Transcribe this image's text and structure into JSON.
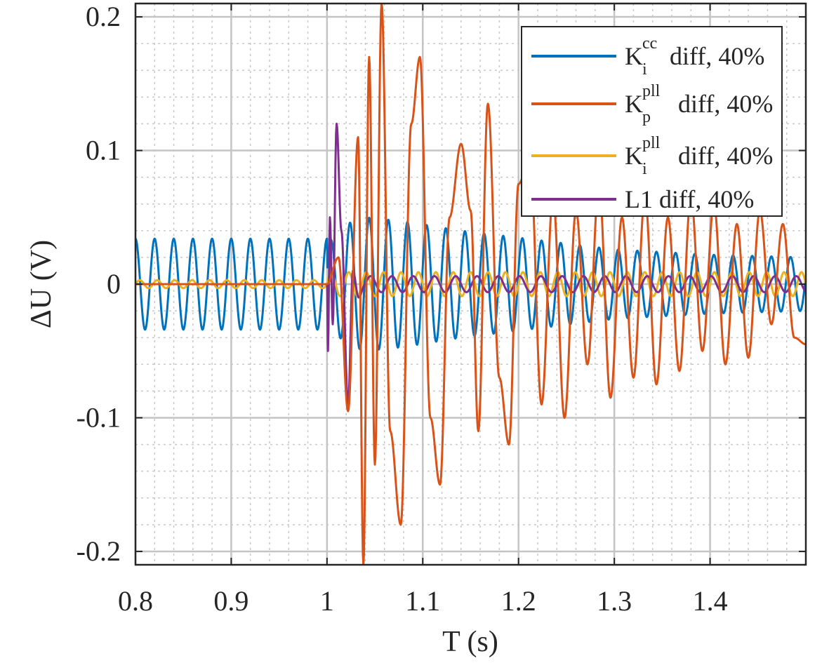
{
  "chart_data": {
    "type": "line",
    "xlabel": "T (s)",
    "ylabel": "ΔU (V)",
    "xlim": [
      0.8,
      1.5
    ],
    "ylim": [
      -0.21,
      0.21
    ],
    "xticks": [
      0.8,
      0.9,
      1.0,
      1.1,
      1.2,
      1.3,
      1.4
    ],
    "xtick_labels": [
      "0.8",
      "0.9",
      "1",
      "1.1",
      "1.2",
      "1.3",
      "1.4"
    ],
    "yticks": [
      -0.2,
      -0.1,
      0,
      0.1,
      0.2
    ],
    "ytick_labels": [
      "-0.2",
      "-0.1",
      "0",
      "0.1",
      "0.2"
    ],
    "grid": true,
    "minor_grid": true,
    "legend_position": "top-right",
    "series": [
      {
        "name": "K_i^cc diff, 40%",
        "legend": {
          "base": "K",
          "sub": "i",
          "sup": "cc",
          "rest": " diff, 40%"
        },
        "color": "#0072BD",
        "frequency_hz": 50,
        "before_amplitude": 0.034,
        "after_peaks": [
          [
            1.0,
            0.03
          ],
          [
            1.02,
            0.045
          ],
          [
            1.04,
            0.05
          ],
          [
            1.08,
            0.047
          ],
          [
            1.14,
            0.04
          ],
          [
            1.22,
            0.033
          ],
          [
            1.3,
            0.026
          ],
          [
            1.4,
            0.022
          ],
          [
            1.5,
            0.02
          ]
        ]
      },
      {
        "name": "K_p^pll diff, 40%",
        "legend": {
          "base": "K",
          "sub": "p",
          "sup": "pll",
          "rest": " diff, 40%"
        },
        "color": "#D95319",
        "peaks": [
          [
            1.0,
            0.0
          ],
          [
            1.012,
            0.02
          ],
          [
            1.022,
            -0.095
          ],
          [
            1.0325,
            0.11
          ],
          [
            1.038,
            -0.21
          ],
          [
            1.044,
            0.17
          ],
          [
            1.05,
            -0.135
          ],
          [
            1.057,
            0.21
          ],
          [
            1.066,
            -0.11
          ],
          [
            1.077,
            -0.18
          ],
          [
            1.088,
            0.12
          ],
          [
            1.097,
            0.17
          ],
          [
            1.108,
            -0.1
          ],
          [
            1.118,
            -0.15
          ],
          [
            1.128,
            0.05
          ],
          [
            1.14,
            0.105
          ],
          [
            1.15,
            0.055
          ],
          [
            1.158,
            -0.11
          ],
          [
            1.168,
            0.135
          ],
          [
            1.18,
            -0.07
          ],
          [
            1.19,
            -0.12
          ],
          [
            1.2,
            0.075
          ],
          [
            1.212,
            0.095
          ],
          [
            1.224,
            -0.09
          ],
          [
            1.236,
            0.065
          ],
          [
            1.248,
            -0.1
          ],
          [
            1.26,
            0.055
          ],
          [
            1.272,
            -0.06
          ],
          [
            1.284,
            0.075
          ],
          [
            1.296,
            -0.085
          ],
          [
            1.308,
            0.05
          ],
          [
            1.32,
            -0.07
          ],
          [
            1.332,
            0.065
          ],
          [
            1.344,
            -0.075
          ],
          [
            1.356,
            0.05
          ],
          [
            1.368,
            -0.065
          ],
          [
            1.38,
            0.065
          ],
          [
            1.392,
            -0.05
          ],
          [
            1.404,
            0.06
          ],
          [
            1.416,
            -0.06
          ],
          [
            1.428,
            0.045
          ],
          [
            1.44,
            -0.055
          ],
          [
            1.452,
            0.055
          ],
          [
            1.464,
            -0.03
          ],
          [
            1.476,
            0.045
          ],
          [
            1.488,
            -0.04
          ],
          [
            1.5,
            -0.045
          ]
        ]
      },
      {
        "name": "K_i^pll diff, 40%",
        "legend": {
          "base": "K",
          "sub": "i",
          "sup": "pll",
          "rest": " diff, 40%"
        },
        "color": "#EDB120",
        "frequency_hz": 55,
        "before_amplitude": 0.003,
        "after_amplitude": 0.009
      },
      {
        "name": "L1 diff, 40%",
        "legend": {
          "base": "L1",
          "sub": "",
          "sup": "",
          "rest": " diff, 40%"
        },
        "color": "#7E2F8E",
        "peaks": [
          [
            0.8,
            0.0
          ],
          [
            1.0,
            0.0
          ],
          [
            1.001,
            -0.05
          ],
          [
            1.003,
            0.05
          ],
          [
            1.006,
            -0.03
          ],
          [
            1.01,
            0.12
          ],
          [
            1.015,
            0.04
          ],
          [
            1.022,
            -0.09
          ],
          [
            1.027,
            0.01
          ],
          [
            1.033,
            -0.01
          ],
          [
            1.04,
            0.0
          ]
        ],
        "after_frequency_hz": 45,
        "after_amplitude": 0.006
      }
    ]
  }
}
